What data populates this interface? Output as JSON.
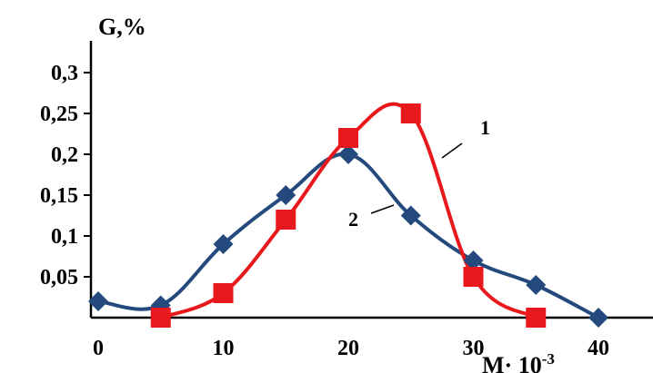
{
  "chart_data": {
    "type": "line",
    "ylabel": "G,%",
    "xlabel": "M· 10",
    "xlabel_sup": "-3",
    "xlim": [
      0,
      40
    ],
    "ylim": [
      0,
      0.3
    ],
    "x_ticks": [
      "0",
      "10",
      "20",
      "30",
      "40"
    ],
    "y_ticks": [
      "0,05",
      "0,1",
      "0,15",
      "0,2",
      "0,25",
      "0,3"
    ],
    "grid": false,
    "series": [
      {
        "name": "1",
        "color": "#e8191c",
        "marker": "square",
        "x": [
          5,
          10,
          15,
          20,
          25,
          30,
          35
        ],
        "y": [
          0,
          0.03,
          0.12,
          0.22,
          0.25,
          0.05,
          0
        ]
      },
      {
        "name": "2",
        "color": "#23497d",
        "marker": "diamond",
        "x": [
          0,
          5,
          10,
          15,
          20,
          25,
          30,
          35,
          40
        ],
        "y": [
          0.02,
          0.015,
          0.09,
          0.15,
          0.2,
          0.125,
          0.07,
          0.04,
          0
        ]
      }
    ]
  }
}
